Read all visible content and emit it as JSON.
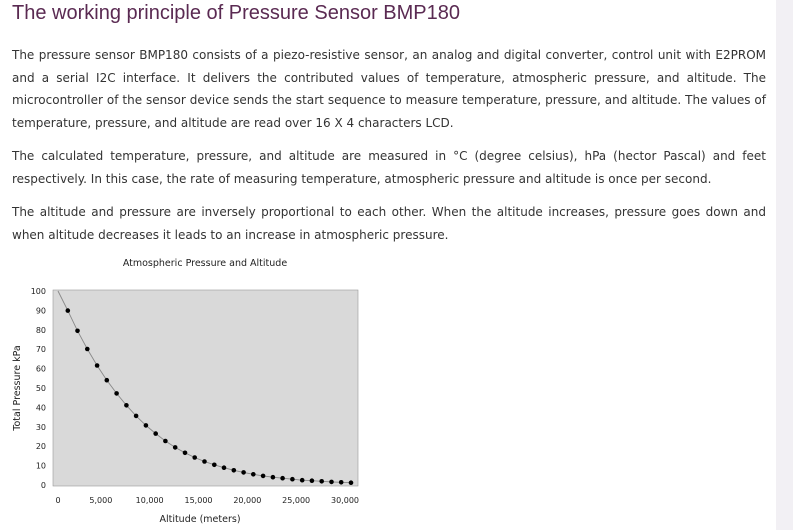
{
  "article": {
    "title": "The working principle of Pressure Sensor BMP180",
    "paragraphs": [
      "The pressure sensor BMP180 consists of a piezo-resistive sensor, an analog and digital converter, control unit with E2PROM and a serial I2C interface. It delivers the contributed values of temperature, atmospheric pressure, and altitude. The microcontroller of the sensor device sends the start sequence to measure temperature, pressure, and altitude. The values of temperature, pressure, and altitude are read over 16 X 4 characters LCD.",
      "The calculated temperature, pressure, and altitude are measured in °C (degree celsius), hPa (hector Pascal) and feet respectively. In this case, the rate of measuring temperature, atmospheric pressure and altitude is once per second.",
      "The altitude and pressure are inversely proportional to each other. When the altitude increases, pressure goes down and when altitude decreases it leads to an increase in atmospheric pressure."
    ]
  },
  "chart_data": {
    "type": "line",
    "title": "Atmospheric Pressure and Altitude",
    "xlabel": "Altitude (meters)",
    "ylabel": "Total Pressure kPa",
    "xlim": [
      0,
      30000
    ],
    "ylim": [
      0,
      100
    ],
    "x_ticks": [
      "0",
      "5,000",
      "10,000",
      "15,000",
      "20,000",
      "25,000",
      "30,000"
    ],
    "y_ticks": [
      "0",
      "10",
      "20",
      "30",
      "40",
      "50",
      "60",
      "70",
      "80",
      "90",
      "100"
    ],
    "grid": false,
    "legend": "none",
    "line_color": "#888888",
    "marker_color": "#000000",
    "plot_background": "#d9d9d9",
    "series": [
      {
        "x": [
          0,
          1000,
          2000,
          3000,
          4000,
          5000,
          6000,
          7000,
          8000,
          9000,
          10000,
          11000,
          12000,
          13000,
          14000,
          15000,
          16000,
          17000,
          18000,
          19000,
          20000,
          21000,
          22000,
          23000,
          24000,
          25000,
          26000,
          27000,
          28000,
          29000,
          30000
        ],
        "y": [
          101.3,
          89.9,
          79.5,
          70.1,
          61.6,
          54.0,
          47.2,
          41.1,
          35.6,
          30.7,
          26.5,
          22.7,
          19.4,
          16.6,
          14.2,
          12.1,
          10.4,
          8.9,
          7.6,
          6.5,
          5.5,
          4.7,
          4.0,
          3.5,
          3.0,
          2.5,
          2.2,
          1.9,
          1.6,
          1.4,
          1.2
        ]
      }
    ]
  }
}
